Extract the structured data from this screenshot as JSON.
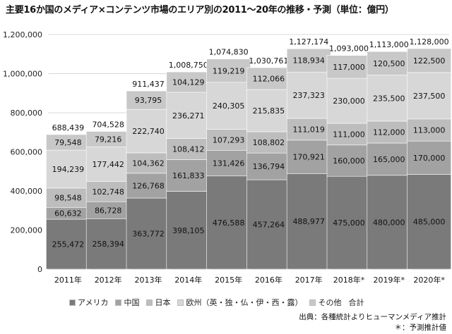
{
  "title": "主要16か国のメディア×コンテンツ市場のエリア別の2011～20年の推移・予測（単位：億円）",
  "colors": {
    "アメリカ": "#7a7a7a",
    "中国": "#a2a2a2",
    "日本": "#bdbdbd",
    "欧州": "#d7d7d7",
    "その他": "#c8c8c8",
    "合計": "#ffffff"
  },
  "chart_data": {
    "type": "bar",
    "stacked": true,
    "categories": [
      "2011年",
      "2012年",
      "2013年",
      "2014年",
      "2015年",
      "2016年",
      "2017年",
      "2018年*",
      "2019年*",
      "2020年*"
    ],
    "series": [
      {
        "name": "アメリカ",
        "values": [
          255472,
          258394,
          363772,
          398105,
          476588,
          457264,
          488977,
          475000,
          480000,
          485000
        ],
        "labels": [
          "255,472",
          "258,394",
          "363,772",
          "398,105",
          "476,588",
          "457,264",
          "488,977",
          "475,000",
          "480,000",
          "485,000"
        ]
      },
      {
        "name": "中国",
        "values": [
          60632,
          86728,
          126768,
          161833,
          131426,
          136794,
          170921,
          160000,
          165000,
          170000
        ],
        "labels": [
          "60,632",
          "86,728",
          "126,768",
          "161,833",
          "131,426",
          "136,794",
          "170,921",
          "160,000",
          "165,000",
          "170,000"
        ]
      },
      {
        "name": "日本",
        "values": [
          98548,
          102748,
          104362,
          108412,
          107293,
          108802,
          111019,
          111000,
          112000,
          113000
        ],
        "labels": [
          "98,548",
          "102,748",
          "104,362",
          "108,412",
          "107,293",
          "108,802",
          "111,019",
          "111,000",
          "112,000",
          "113,000"
        ]
      },
      {
        "name": "欧州（英・独・仏・伊・西・露）",
        "values": [
          194239,
          177442,
          222740,
          236271,
          240305,
          215835,
          237323,
          230000,
          235500,
          237500
        ],
        "labels": [
          "194,239",
          "177,442",
          "222,740",
          "236,271",
          "240,305",
          "215,835",
          "237,323",
          "230,000",
          "235,500",
          "237,500"
        ]
      },
      {
        "name": "その他",
        "values": [
          79548,
          79216,
          93795,
          104129,
          119219,
          112066,
          118934,
          117000,
          120500,
          122500
        ],
        "labels": [
          "79,548",
          "79,216",
          "93,795",
          "104,129",
          "119,219",
          "112,066",
          "118,934",
          "117,000",
          "120,500",
          "122,500"
        ]
      }
    ],
    "totals": [
      688439,
      704528,
      911437,
      1008750,
      1074830,
      1030761,
      1127174,
      1093000,
      1113000,
      1128000
    ],
    "total_labels": [
      "688,439",
      "704,528",
      "911,437",
      "1,008,750",
      "1,074,830",
      "1,030,761",
      "1,127,174",
      "1,093,000",
      "1,113,000",
      "1,128,000"
    ],
    "ylim": [
      0,
      1200000
    ],
    "yticks": [
      0,
      200000,
      400000,
      600000,
      800000,
      1000000,
      1200000
    ],
    "ytick_labels": [
      "0",
      "200,000",
      "400,000",
      "600,000",
      "800,000",
      "1,000,000",
      "1,200,000"
    ],
    "grid": true,
    "legend": [
      {
        "label": "アメリカ",
        "key": "アメリカ"
      },
      {
        "label": "中国",
        "key": "中国"
      },
      {
        "label": "日本",
        "key": "日本"
      },
      {
        "label": "欧州（英・独・仏・伊・西・露）",
        "key": "欧州"
      },
      {
        "label": "その他",
        "key": "その他"
      },
      {
        "label": "合計",
        "key": "合計"
      }
    ],
    "legend_position": "bottom",
    "source": "出典：各種統計よりヒューマンメディア推計",
    "note": "＊：予測推計値"
  }
}
